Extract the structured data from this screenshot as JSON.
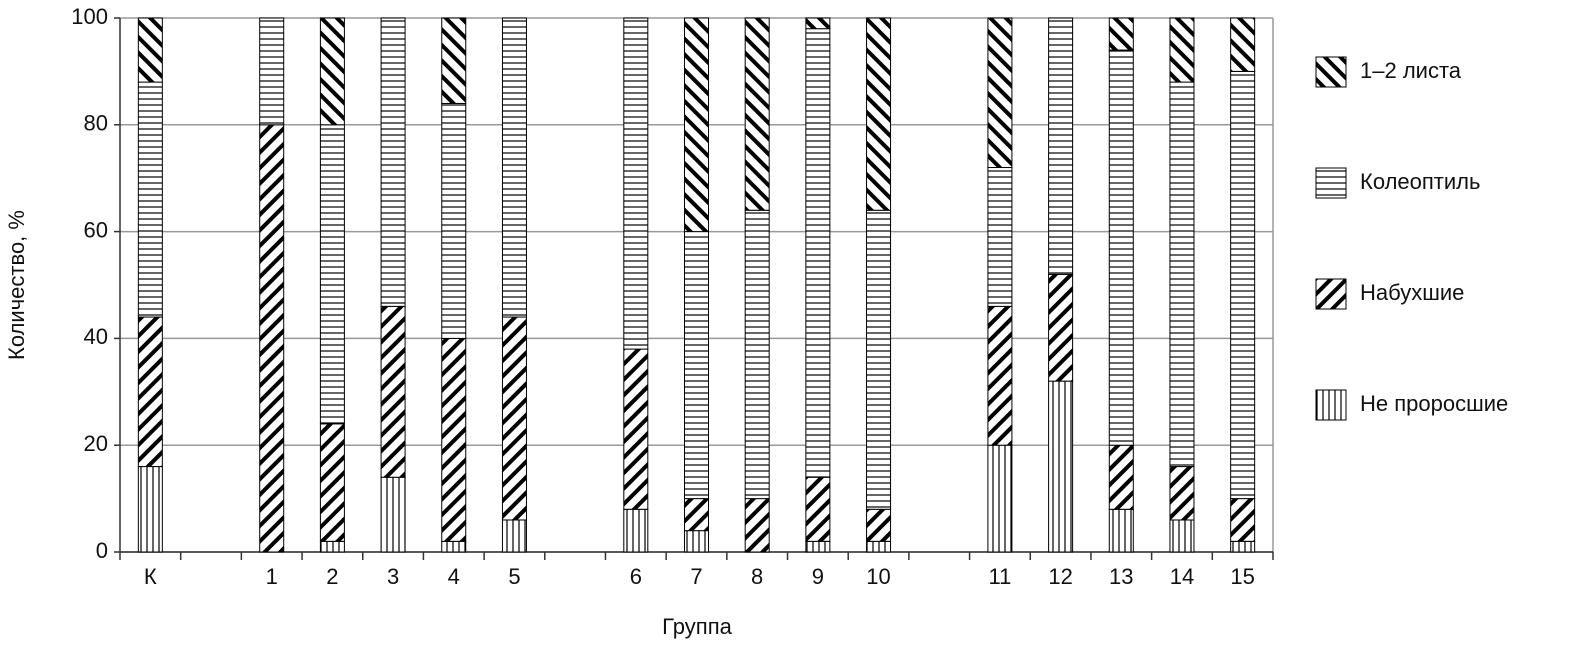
{
  "chart_data": {
    "type": "stacked-bar",
    "x_label": "Группа",
    "y_label": "Количество,  %",
    "categories": [
      "К",
      null,
      "1",
      "2",
      "3",
      "4",
      "5",
      null,
      "6",
      "7",
      "8",
      "9",
      "10",
      null,
      "11",
      "12",
      "13",
      "14",
      "15"
    ],
    "series": [
      {
        "name": "Не проросшие",
        "color": "#000000",
        "pattern": "vertical",
        "values": [
          16,
          null,
          0,
          2,
          14,
          2,
          6,
          null,
          8,
          4,
          0,
          2,
          2,
          null,
          20,
          32,
          8,
          6,
          2
        ]
      },
      {
        "name": "Набухшие",
        "color": "#000000",
        "pattern": "diagonal-down",
        "values": [
          28,
          null,
          80,
          22,
          32,
          38,
          38,
          null,
          30,
          6,
          10,
          12,
          6,
          null,
          26,
          20,
          12,
          10,
          8
        ]
      },
      {
        "name": "Колеоптиль",
        "color": "#000000",
        "pattern": "horizontal",
        "values": [
          44,
          null,
          20,
          56,
          54,
          44,
          56,
          null,
          62,
          50,
          54,
          84,
          56,
          null,
          26,
          48,
          74,
          72,
          80
        ]
      },
      {
        "name": "1–2 листа",
        "color": "#000000",
        "pattern": "diagonal-up",
        "values": [
          12,
          null,
          0,
          20,
          0,
          16,
          0,
          null,
          0,
          40,
          36,
          2,
          36,
          null,
          28,
          0,
          6,
          12,
          10
        ]
      }
    ],
    "ylim": [
      0,
      100
    ],
    "yticks": [
      0,
      20,
      40,
      60,
      80,
      100
    ],
    "grid": true,
    "legend": "right"
  }
}
